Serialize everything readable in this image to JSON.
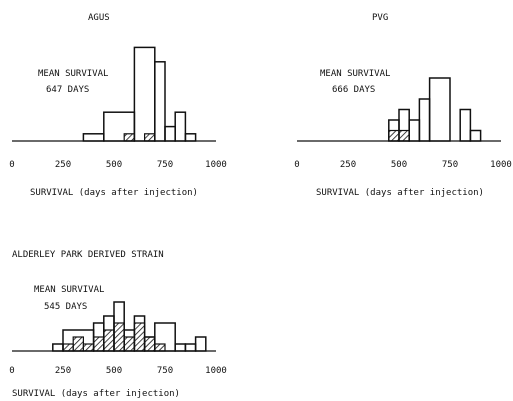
{
  "chart_data": [
    {
      "type": "bar",
      "title": "AGUS",
      "annotation": [
        "MEAN SURVIVAL",
        "647 DAYS"
      ],
      "xlabel": "SURVIVAL (days after injection)",
      "xlim": [
        0,
        1000
      ],
      "xticks": [
        "0",
        "250",
        "500",
        "750",
        "1000"
      ],
      "bin_width": 50,
      "series": [
        {
          "fill": "open",
          "bins": [
            [
              350,
              450,
              1
            ],
            [
              450,
              600,
              4
            ],
            [
              600,
              700,
              13
            ],
            [
              700,
              750,
              11
            ],
            [
              750,
              800,
              2
            ],
            [
              800,
              850,
              4
            ],
            [
              850,
              900,
              1
            ]
          ]
        },
        {
          "fill": "hatched",
          "bins": [
            [
              550,
              600,
              1
            ],
            [
              650,
              700,
              1
            ]
          ]
        }
      ]
    },
    {
      "type": "bar",
      "title": "PVG",
      "annotation": [
        "MEAN SURVIVAL",
        "666 DAYS"
      ],
      "xlabel": "SURVIVAL (days after injection)",
      "xlim": [
        0,
        1000
      ],
      "xticks": [
        "0",
        "250",
        "500",
        "750",
        "1000"
      ],
      "bin_width": 50,
      "series": [
        {
          "fill": "open",
          "bins": [
            [
              450,
              500,
              2
            ],
            [
              500,
              550,
              3
            ],
            [
              550,
              600,
              2
            ],
            [
              600,
              650,
              4
            ],
            [
              650,
              750,
              6
            ],
            [
              800,
              850,
              3
            ],
            [
              850,
              900,
              1
            ]
          ]
        },
        {
          "fill": "hatched",
          "bins": [
            [
              450,
              550,
              1
            ]
          ]
        }
      ]
    },
    {
      "type": "bar",
      "title": "ALDERLEY PARK DERIVED STRAIN",
      "annotation": [
        "MEAN SURVIVAL",
        "545 DAYS"
      ],
      "xlabel": "SURVIVAL (days after injection)",
      "xlim": [
        0,
        1000
      ],
      "xticks": [
        "0",
        "250",
        "500",
        "750",
        "1000"
      ],
      "bin_width": 50,
      "series": [
        {
          "fill": "open",
          "bins": [
            [
              200,
              250,
              1
            ],
            [
              250,
              400,
              3
            ],
            [
              400,
              450,
              4
            ],
            [
              450,
              500,
              5
            ],
            [
              500,
              550,
              7
            ],
            [
              550,
              600,
              3
            ],
            [
              600,
              650,
              5
            ],
            [
              650,
              700,
              2
            ],
            [
              700,
              800,
              4
            ],
            [
              800,
              850,
              1
            ],
            [
              850,
              900,
              1
            ],
            [
              900,
              950,
              2
            ]
          ]
        },
        {
          "fill": "hatched",
          "bins": [
            [
              250,
              300,
              1
            ],
            [
              300,
              350,
              2
            ],
            [
              350,
              400,
              1
            ],
            [
              400,
              450,
              2
            ],
            [
              450,
              500,
              3
            ],
            [
              500,
              550,
              4
            ],
            [
              550,
              600,
              2
            ],
            [
              600,
              650,
              4
            ],
            [
              650,
              700,
              2
            ],
            [
              700,
              750,
              1
            ]
          ]
        }
      ]
    }
  ]
}
